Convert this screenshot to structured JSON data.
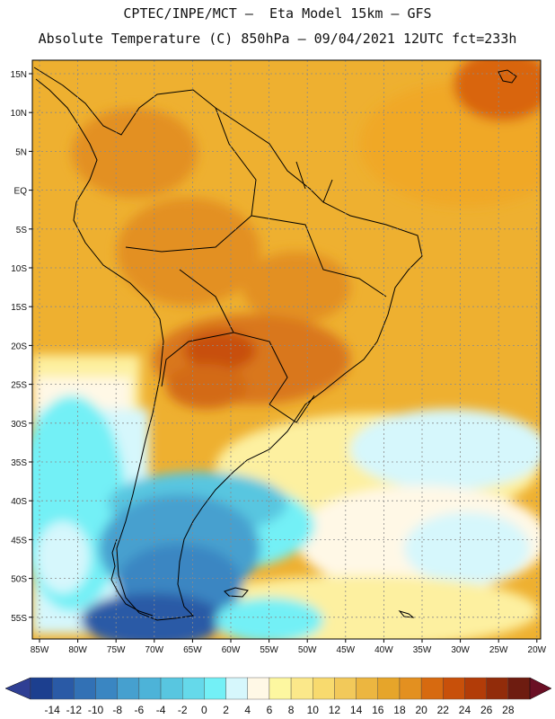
{
  "title": {
    "line1": "CPTEC/INPE/MCT –  Eta Model 15km – GFS",
    "line2": "Absolute Temperature (C) 850hPa – 09/04/2021 12UTC fct=233h"
  },
  "map": {
    "lat_labels": [
      "15N",
      "10N",
      "5N",
      "EQ",
      "5S",
      "10S",
      "15S",
      "20S",
      "25S",
      "30S",
      "35S",
      "40S",
      "45S",
      "50S",
      "55S"
    ],
    "lon_labels": [
      "85W",
      "80W",
      "75W",
      "70W",
      "65W",
      "60W",
      "55W",
      "50W",
      "45W",
      "40W",
      "35W",
      "30W",
      "25W",
      "20W"
    ]
  },
  "colorbar": {
    "labels": [
      "-14",
      "-12",
      "-10",
      "-8",
      "-6",
      "-4",
      "-2",
      "0",
      "2",
      "4",
      "6",
      "8",
      "10",
      "12",
      "14",
      "16",
      "18",
      "20",
      "22",
      "24",
      "26",
      "28"
    ],
    "colors": [
      "#1c3f8f",
      "#2a5aa6",
      "#3271b5",
      "#3a86c2",
      "#46a0cf",
      "#4db3d8",
      "#58c6e0",
      "#65d9ea",
      "#73f0f6",
      "#d6f7fc",
      "#fff8e6",
      "#fdf7a0",
      "#fbe88a",
      "#f8da6e",
      "#f2c95a",
      "#ecb640",
      "#e6a52a",
      "#e39020",
      "#d76a10",
      "#c8500a",
      "#b23c08",
      "#922c0a",
      "#6e1c10"
    ]
  },
  "palette": {
    "ocean_warm": "#eeb030",
    "land_hot": "#d9771b",
    "cool": "#fff8e6"
  }
}
